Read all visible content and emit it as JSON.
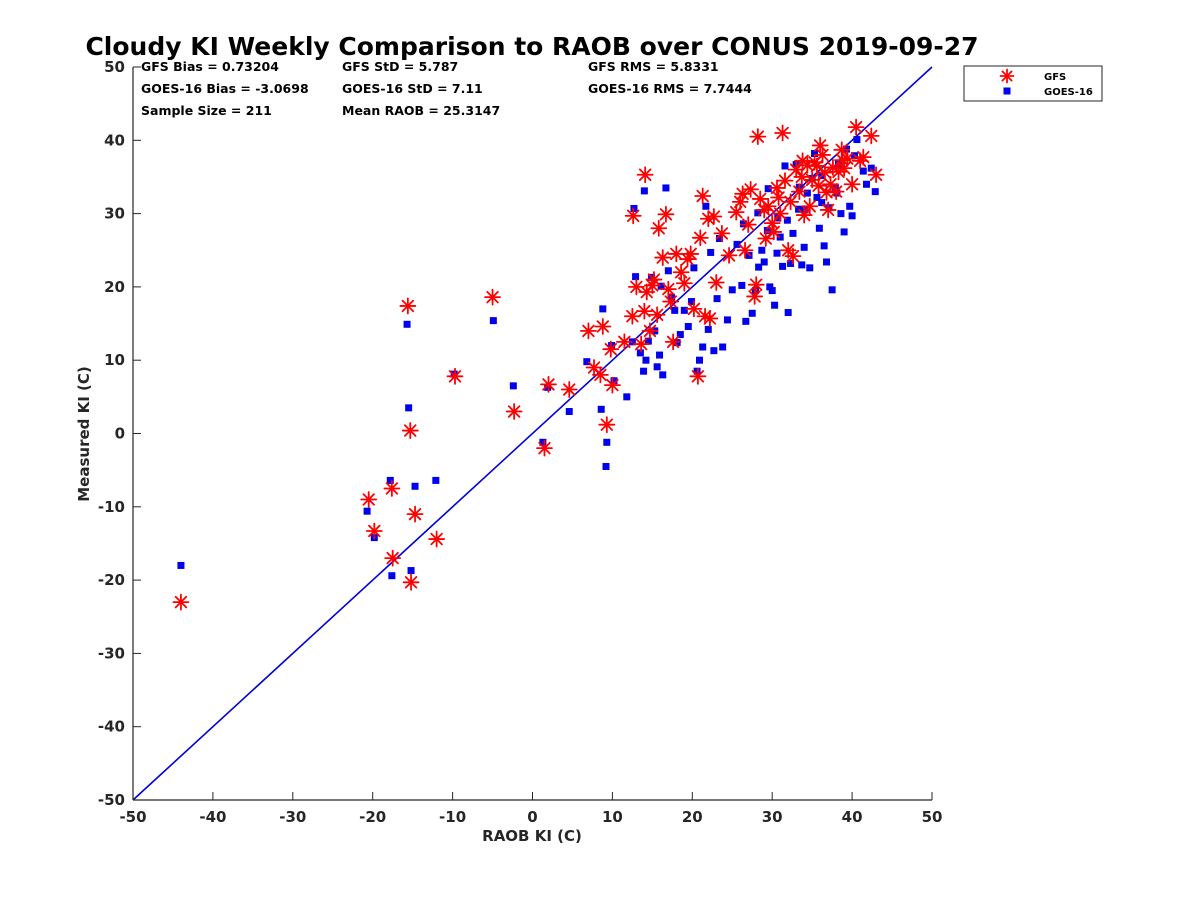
{
  "chart_data": {
    "type": "scatter",
    "title": "Cloudy KI Weekly Comparison to RAOB over CONUS 2019-09-27",
    "xlabel": "RAOB KI (C)",
    "ylabel": "Measured KI (C)",
    "xlim": [
      -50,
      50
    ],
    "ylim": [
      -50,
      50
    ],
    "xticks": [
      "-50",
      "-40",
      "-30",
      "-20",
      "-10",
      "0",
      "10",
      "20",
      "30",
      "40",
      "50"
    ],
    "yticks": [
      "50",
      "40",
      "30",
      "20",
      "10",
      "0",
      "-10",
      "-20",
      "-30",
      "-40",
      "-50"
    ],
    "grid": false,
    "legend_position": "top-right (outside plot)",
    "reference_line": {
      "from": [
        -50,
        -50
      ],
      "to": [
        50,
        50
      ],
      "color": "#0000d9"
    },
    "stats": [
      [
        "GFS Bias = 0.73204",
        "GFS StD = 5.787",
        "GFS RMS = 5.8331"
      ],
      [
        "GOES-16 Bias = -3.0698",
        "GOES-16 StD = 7.11",
        "GOES-16 RMS = 7.7444"
      ],
      [
        "Sample Size = 211",
        "Mean RAOB = 25.3147",
        ""
      ]
    ],
    "series": [
      {
        "name": "GFS",
        "marker": "asterisk",
        "color": "#ff0000",
        "points": [
          [
            -44,
            -23
          ],
          [
            -20.5,
            -9
          ],
          [
            -19.8,
            -13.3
          ],
          [
            -17.6,
            -7.5
          ],
          [
            -17.5,
            -17
          ],
          [
            -15.6,
            17.4
          ],
          [
            -15.3,
            0.4
          ],
          [
            -15.2,
            -20.3
          ],
          [
            -14.7,
            -11
          ],
          [
            -12,
            -14.4
          ],
          [
            -9.7,
            7.8
          ],
          [
            -5,
            18.6
          ],
          [
            -2.3,
            3
          ],
          [
            1.5,
            -2
          ],
          [
            2,
            6.7
          ],
          [
            4.6,
            6
          ],
          [
            7,
            14
          ],
          [
            7.7,
            9
          ],
          [
            8.5,
            8
          ],
          [
            8.8,
            14.6
          ],
          [
            9.3,
            1.2
          ],
          [
            9.8,
            11.5
          ],
          [
            10,
            6.6
          ],
          [
            11.5,
            12.5
          ],
          [
            12.5,
            16
          ],
          [
            12.6,
            29.7
          ],
          [
            13,
            20
          ],
          [
            13.6,
            12.2
          ],
          [
            14,
            16.7
          ],
          [
            14.1,
            35.3
          ],
          [
            14.3,
            19.3
          ],
          [
            14.7,
            14
          ],
          [
            15.2,
            21
          ],
          [
            15.6,
            16.2
          ],
          [
            15.8,
            28
          ],
          [
            16.3,
            24
          ],
          [
            16.7,
            29.9
          ],
          [
            17,
            19.7
          ],
          [
            17.3,
            18
          ],
          [
            17.6,
            12.5
          ],
          [
            18,
            24.5
          ],
          [
            18.6,
            22
          ],
          [
            19,
            20.5
          ],
          [
            19.4,
            23.8
          ],
          [
            20.2,
            17
          ],
          [
            20.7,
            7.8
          ],
          [
            21,
            26.7
          ],
          [
            21.3,
            32.4
          ],
          [
            21.6,
            16
          ],
          [
            22,
            29.3
          ],
          [
            22.2,
            15.7
          ],
          [
            22.7,
            29.6
          ],
          [
            23,
            20.6
          ],
          [
            23.7,
            27.3
          ],
          [
            24.6,
            24.3
          ],
          [
            25.5,
            30.2
          ],
          [
            26,
            31.6
          ],
          [
            26.3,
            32.7
          ],
          [
            26.6,
            25
          ],
          [
            27,
            28.5
          ],
          [
            27.3,
            33.3
          ],
          [
            27.8,
            18.7
          ],
          [
            28,
            20.3
          ],
          [
            28.2,
            40.5
          ],
          [
            28.5,
            32
          ],
          [
            29,
            30.5
          ],
          [
            29.5,
            31
          ],
          [
            30,
            28.7
          ],
          [
            30.2,
            27.5
          ],
          [
            30.6,
            33.5
          ],
          [
            31,
            30
          ],
          [
            31.3,
            41
          ],
          [
            31.6,
            34.5
          ],
          [
            32,
            25
          ],
          [
            32.3,
            31.6
          ],
          [
            32.6,
            24.2
          ],
          [
            33,
            36
          ],
          [
            33.4,
            33
          ],
          [
            33.7,
            35
          ],
          [
            34,
            29.8
          ],
          [
            34.4,
            36.6
          ],
          [
            34.7,
            31
          ],
          [
            35,
            34.6
          ],
          [
            35.3,
            37
          ],
          [
            35.6,
            36.5
          ],
          [
            36,
            39.3
          ],
          [
            36.3,
            38
          ],
          [
            36.6,
            35.6
          ],
          [
            37,
            30.5
          ],
          [
            37.3,
            34
          ],
          [
            37.6,
            36.3
          ],
          [
            38,
            33
          ],
          [
            38.3,
            35.7
          ],
          [
            38.7,
            38.7
          ],
          [
            39,
            36.2
          ],
          [
            39.4,
            37.5
          ],
          [
            40,
            34
          ],
          [
            40.5,
            41.8
          ],
          [
            41,
            37.2
          ],
          [
            41.4,
            37.7
          ],
          [
            42.4,
            40.6
          ],
          [
            43,
            35.3
          ],
          [
            29.2,
            26.6
          ],
          [
            30.8,
            32.2
          ],
          [
            33.8,
            37.2
          ],
          [
            36.8,
            32.9
          ],
          [
            35.8,
            33.8
          ],
          [
            38.8,
            37.3
          ],
          [
            19.8,
            24.5
          ],
          [
            15,
            20.2
          ]
        ]
      },
      {
        "name": "GOES-16",
        "marker": "square",
        "color": "#0000ee",
        "points": [
          [
            -44,
            -18
          ],
          [
            -20.7,
            -10.6
          ],
          [
            -19.8,
            -14.2
          ],
          [
            -17.8,
            -6.4
          ],
          [
            -17.6,
            -19.4
          ],
          [
            -15.7,
            14.9
          ],
          [
            -15.5,
            3.5
          ],
          [
            -15.2,
            -18.7
          ],
          [
            -14.7,
            -7.2
          ],
          [
            -12.1,
            -6.4
          ],
          [
            -9.8,
            8.1
          ],
          [
            -4.9,
            15.4
          ],
          [
            -2.4,
            6.5
          ],
          [
            1.3,
            -1.2
          ],
          [
            1.9,
            6.3
          ],
          [
            4.6,
            3
          ],
          [
            6.8,
            9.8
          ],
          [
            8.6,
            3.3
          ],
          [
            8.8,
            17
          ],
          [
            9.2,
            -4.5
          ],
          [
            9.3,
            -1.2
          ],
          [
            9.9,
            12
          ],
          [
            10.2,
            7.2
          ],
          [
            11.8,
            5
          ],
          [
            12.5,
            12.5
          ],
          [
            12.7,
            30.7
          ],
          [
            12.9,
            21.4
          ],
          [
            13.5,
            11
          ],
          [
            13.9,
            8.5
          ],
          [
            14,
            33.1
          ],
          [
            14.2,
            10
          ],
          [
            14.5,
            12.6
          ],
          [
            14.9,
            21.3
          ],
          [
            15.3,
            14
          ],
          [
            15.6,
            9.1
          ],
          [
            15.9,
            10.7
          ],
          [
            16.1,
            20.1
          ],
          [
            16.3,
            8
          ],
          [
            16.7,
            33.5
          ],
          [
            17,
            22.2
          ],
          [
            17.4,
            18.6
          ],
          [
            17.8,
            16.8
          ],
          [
            18.1,
            12.4
          ],
          [
            18.5,
            13.5
          ],
          [
            19,
            16.8
          ],
          [
            19.5,
            14.6
          ],
          [
            19.9,
            18
          ],
          [
            20.2,
            22.6
          ],
          [
            20.6,
            8.5
          ],
          [
            20.9,
            10
          ],
          [
            21.3,
            11.8
          ],
          [
            21.7,
            31
          ],
          [
            22,
            14.2
          ],
          [
            22.3,
            24.7
          ],
          [
            22.7,
            11.3
          ],
          [
            23.1,
            18.4
          ],
          [
            23.4,
            26.6
          ],
          [
            23.8,
            11.8
          ],
          [
            24.4,
            15.5
          ],
          [
            25,
            19.6
          ],
          [
            25.6,
            25.8
          ],
          [
            26.2,
            20.2
          ],
          [
            26.7,
            15.3
          ],
          [
            27.1,
            24.3
          ],
          [
            27.5,
            16.4
          ],
          [
            27.9,
            19.5
          ],
          [
            28.3,
            22.7
          ],
          [
            28.7,
            25
          ],
          [
            29,
            23.4
          ],
          [
            29.4,
            27.7
          ],
          [
            29.7,
            20
          ],
          [
            30,
            19.5
          ],
          [
            30.3,
            17.5
          ],
          [
            30.6,
            24.6
          ],
          [
            31,
            26.8
          ],
          [
            31.3,
            22.8
          ],
          [
            31.6,
            36.5
          ],
          [
            32,
            16.5
          ],
          [
            32.3,
            23.2
          ],
          [
            32.6,
            27.3
          ],
          [
            33,
            36.7
          ],
          [
            33.3,
            30.6
          ],
          [
            33.7,
            23
          ],
          [
            34,
            25.4
          ],
          [
            34.4,
            32.8
          ],
          [
            34.7,
            22.6
          ],
          [
            35,
            34.8
          ],
          [
            35.3,
            38.2
          ],
          [
            35.6,
            32.2
          ],
          [
            35.9,
            28
          ],
          [
            36.2,
            31.5
          ],
          [
            36.5,
            25.6
          ],
          [
            36.8,
            23.4
          ],
          [
            37.1,
            30.8
          ],
          [
            37.5,
            19.6
          ],
          [
            37.9,
            33.6
          ],
          [
            38.3,
            36.7
          ],
          [
            38.6,
            30
          ],
          [
            39,
            27.5
          ],
          [
            39.3,
            38.8
          ],
          [
            39.7,
            31
          ],
          [
            40,
            29.7
          ],
          [
            40.3,
            37.9
          ],
          [
            40.6,
            40.1
          ],
          [
            41.4,
            35.8
          ],
          [
            41.8,
            34
          ],
          [
            42.4,
            36.2
          ],
          [
            42.9,
            33
          ],
          [
            29.5,
            33.4
          ],
          [
            30.7,
            29.4
          ],
          [
            33.4,
            33.6
          ],
          [
            36.2,
            35.2
          ],
          [
            34.1,
            30.5
          ],
          [
            38.1,
            32.8
          ],
          [
            31.9,
            29.1
          ],
          [
            28.2,
            30.1
          ],
          [
            26.4,
            28.6
          ]
        ]
      }
    ]
  }
}
